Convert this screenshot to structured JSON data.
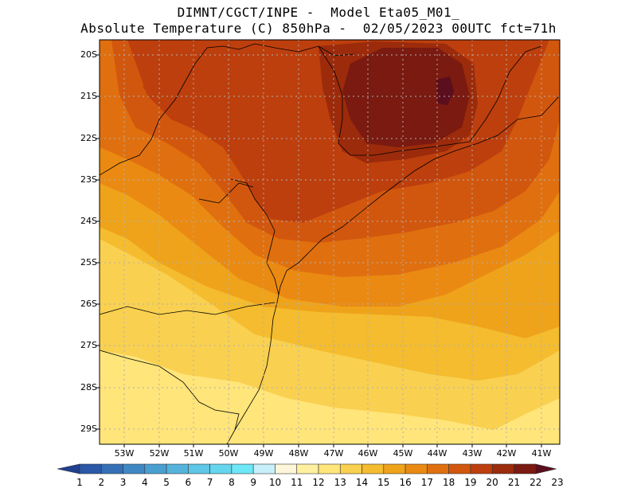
{
  "header": {
    "line1": "DIMNT/CGCT/INPE -  Model Eta05_M01_",
    "line2": "Absolute Temperature (C) 850hPa -  02/05/2023 00UTC fct=71h"
  },
  "map": {
    "lon_range": [
      -53.6,
      -40.6
    ],
    "lat_range": [
      -29.5,
      -19.7
    ],
    "lat_labels": [
      "20S",
      "21S",
      "22S",
      "23S",
      "24S",
      "25S",
      "26S",
      "27S",
      "28S",
      "29S"
    ],
    "lon_labels": [
      "53W",
      "52W",
      "51W",
      "50W",
      "49W",
      "48W",
      "47W",
      "46W",
      "45W",
      "44W",
      "43W",
      "42W",
      "41W"
    ],
    "grid": "dotted"
  },
  "colorbar": {
    "labels": [
      "1",
      "2",
      "3",
      "4",
      "5",
      "6",
      "7",
      "8",
      "9",
      "10",
      "11",
      "12",
      "13",
      "14",
      "15",
      "16",
      "17",
      "18",
      "19",
      "20",
      "21",
      "22",
      "23"
    ],
    "colors": [
      "#1f3f8f",
      "#2a57a6",
      "#3570b7",
      "#3f88c4",
      "#4a9fd1",
      "#55b3dc",
      "#5ec6e6",
      "#66d6ef",
      "#6ee7f6",
      "#c8f0fa",
      "#fff5d8",
      "#fff0a0",
      "#ffe57a",
      "#f9d050",
      "#f4bc2e",
      "#efa31a",
      "#ea8a12",
      "#e0700f",
      "#d2570e",
      "#bd3f0d",
      "#9c2b0b",
      "#7a1a10",
      "#5b0e1e"
    ]
  }
}
